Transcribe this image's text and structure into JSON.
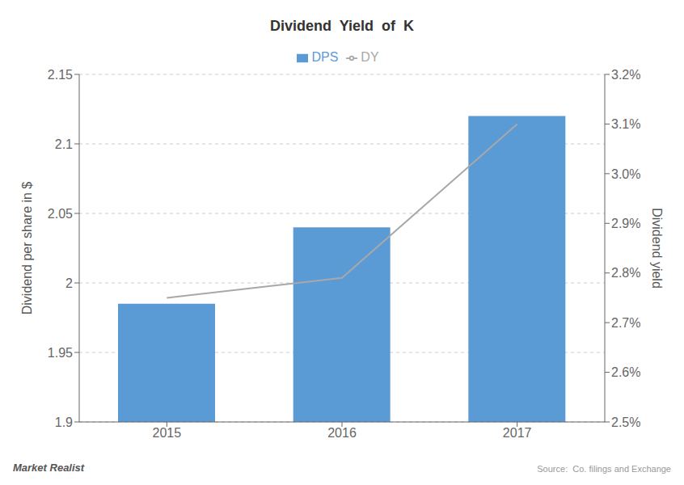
{
  "chart_data": {
    "type": "bar",
    "title": "Dividend  Yield  of  K",
    "categories": [
      "2015",
      "2016",
      "2017"
    ],
    "series": [
      {
        "name": "DPS",
        "type": "bar",
        "color": "#5B9BD5",
        "values": [
          1.985,
          2.04,
          2.12
        ]
      },
      {
        "name": "DY",
        "type": "line",
        "color": "#A8A8A8",
        "axis": "y2",
        "values": [
          2.75,
          2.79,
          3.1
        ]
      }
    ],
    "y_label": "Dividend per share in $",
    "y2_label": "Dividend yield",
    "ylim": [
      1.9,
      2.15
    ],
    "yticks": [
      1.9,
      1.95,
      2,
      2.05,
      2.1,
      2.15
    ],
    "y2lim": [
      2.5,
      3.2
    ],
    "y2ticks": [
      {
        "value": 2.5,
        "label": "2.5%"
      },
      {
        "value": 2.6,
        "label": "2.6%"
      },
      {
        "value": 2.7,
        "label": "2.7%"
      },
      {
        "value": 2.8,
        "label": "2.8%"
      },
      {
        "value": 2.9,
        "label": "2.9%"
      },
      {
        "value": 3.0,
        "label": "3.0%"
      },
      {
        "value": 3.1,
        "label": "3.1%"
      },
      {
        "value": 3.2,
        "label": "3.2%"
      }
    ],
    "grid": true,
    "legend": "top",
    "annotations": [
      "Source:  Co. filings and Exchange",
      "Market Realist"
    ]
  }
}
